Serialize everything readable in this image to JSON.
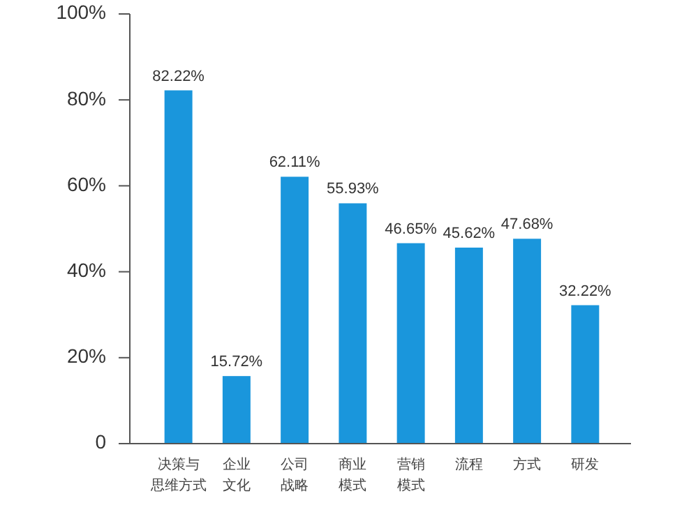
{
  "chart_data": {
    "type": "bar",
    "categories": [
      "决策与思维方式",
      "企业文化",
      "公司战略",
      "商业模式",
      "营销模式",
      "流程",
      "方式",
      "研发"
    ],
    "values": [
      82.22,
      15.72,
      62.11,
      55.93,
      46.65,
      45.62,
      47.68,
      32.22
    ],
    "value_labels": [
      "82.22%",
      "15.72%",
      "62.11%",
      "55.93%",
      "46.65%",
      "45.62%",
      "47.68%",
      "32.22%"
    ],
    "color": "#1a96dc",
    "ylim": [
      0,
      100
    ],
    "yticks": [
      {
        "value": 0,
        "label": "0"
      },
      {
        "value": 20,
        "label": "20%"
      },
      {
        "value": 40,
        "label": "40%"
      },
      {
        "value": 60,
        "label": "60%"
      },
      {
        "value": 80,
        "label": "80%"
      },
      {
        "value": 100,
        "label": "100%"
      }
    ]
  }
}
